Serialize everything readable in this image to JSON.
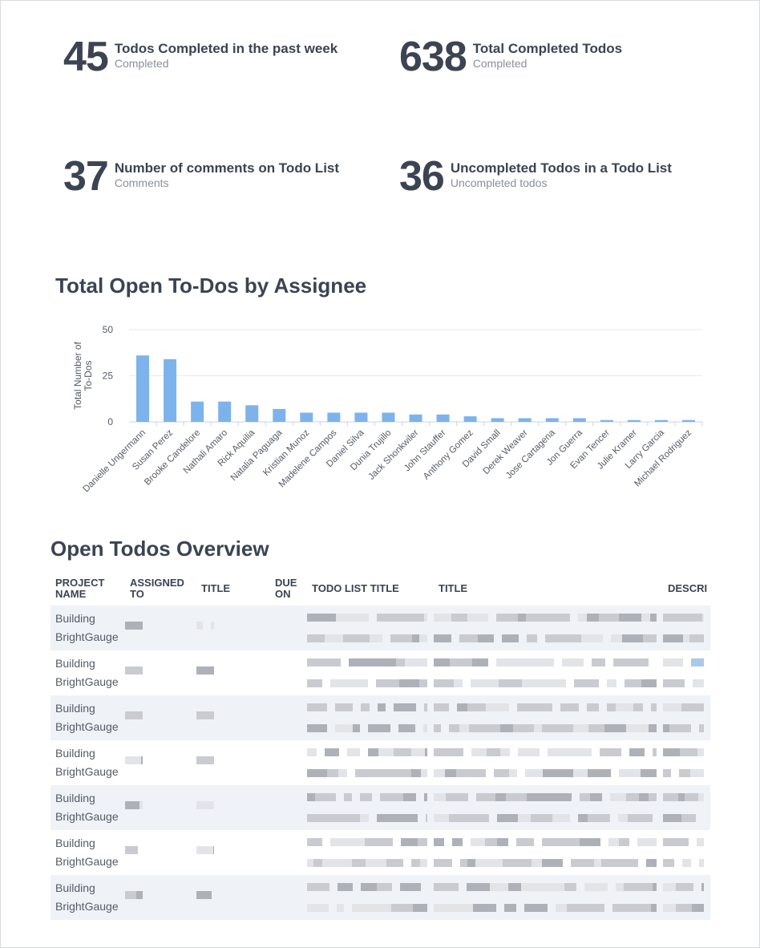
{
  "kpis": [
    {
      "value": "45",
      "title": "Todos Completed in the past week",
      "sub": "Completed"
    },
    {
      "value": "638",
      "title": "Total Completed Todos",
      "sub": "Completed"
    },
    {
      "value": "37",
      "title": "Number of comments on Todo List",
      "sub": "Comments"
    },
    {
      "value": "36",
      "title": "Uncompleted Todos in a Todo List",
      "sub": "Uncompleted todos"
    }
  ],
  "chart_title": "Total Open To-Dos by Assignee",
  "table_title": "Open Todos Overview",
  "chart_data": {
    "type": "bar",
    "title": "Total Open To-Dos by Assignee",
    "ylabel": "Total Number of To-Dos",
    "xlabel": "",
    "ylim": [
      0,
      50
    ],
    "yticks": [
      "0",
      "25",
      "50"
    ],
    "grid": true,
    "bar_color": "#7db3ec",
    "categories": [
      "Danielle Ungermann",
      "Susan Perez",
      "Brooke Candelore",
      "Nathali Amaro",
      "Rick Aquilia",
      "Natalia Paguaga",
      "Kristian Munoz",
      "Madelene Campos",
      "Daniel Silva",
      "Dunia Trujillo",
      "Jack Shonkwiler",
      "John Stauffer",
      "Anthony Gomez",
      "David Small",
      "Derek Weaver",
      "Jose Cartagena",
      "Jon Guerra",
      "Evan Tencer",
      "Julie Kramer",
      "Larry Garcia",
      "Michael Rodriguez"
    ],
    "values": [
      36,
      34,
      11,
      11,
      9,
      7,
      5,
      5,
      5,
      5,
      4,
      4,
      3,
      2,
      2,
      2,
      2,
      1,
      1,
      1,
      1
    ]
  },
  "table": {
    "headers": [
      "PROJECT NAME",
      "ASSIGNED TO",
      "TITLE",
      "DUE ON",
      "TODO LIST TITLE",
      "TITLE",
      "DESCRI"
    ],
    "rows": [
      {
        "project": "Building BrightGauge"
      },
      {
        "project": "Building BrightGauge"
      },
      {
        "project": "Building BrightGauge"
      },
      {
        "project": "Building BrightGauge"
      },
      {
        "project": "Building BrightGauge"
      },
      {
        "project": "Building BrightGauge"
      },
      {
        "project": "Building BrightGauge"
      }
    ]
  }
}
